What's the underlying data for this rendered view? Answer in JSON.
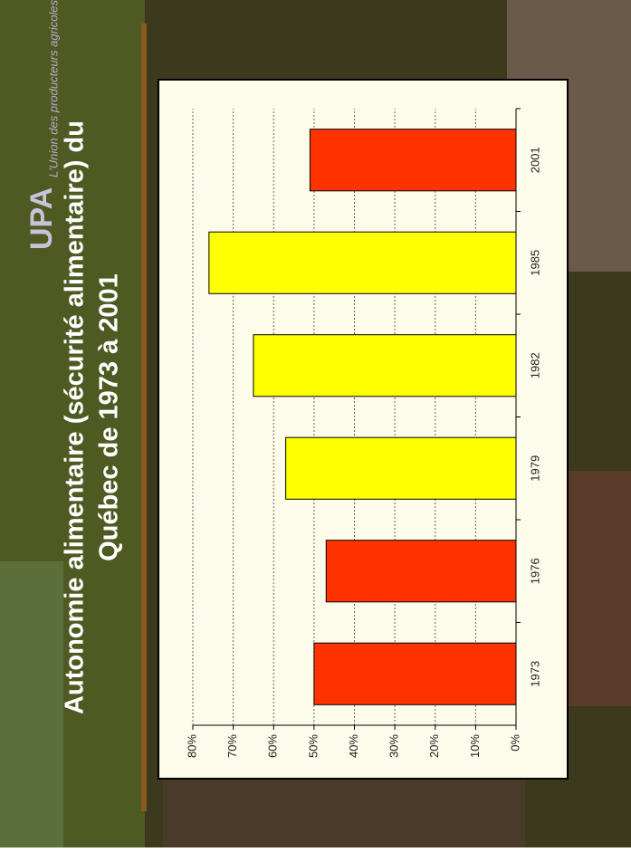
{
  "logo": {
    "name": "UPA",
    "tagline": "L'Union des producteurs agricoles"
  },
  "chart_data": {
    "type": "bar",
    "title": [
      "Autonomie alimentaire (sécurité alimentaire) du",
      "Québec de 1973 à 2001"
    ],
    "categories": [
      "1973",
      "1976",
      "1979",
      "1982",
      "1985",
      "2001"
    ],
    "values": [
      50,
      47,
      57,
      65,
      76,
      51
    ],
    "colors": [
      "#ff3300",
      "#ff3300",
      "#ffff00",
      "#ffff00",
      "#ffff00",
      "#ff3300"
    ],
    "ylim": [
      0,
      80
    ],
    "yticks": [
      {
        "value": 0,
        "label": "0%"
      },
      {
        "value": 10,
        "label": "10%"
      },
      {
        "value": 20,
        "label": "20%"
      },
      {
        "value": 30,
        "label": "30%"
      },
      {
        "value": 40,
        "label": "40%"
      },
      {
        "value": 50,
        "label": "50%"
      },
      {
        "value": 60,
        "label": "60%"
      },
      {
        "value": 70,
        "label": "70%"
      },
      {
        "value": 80,
        "label": "80%"
      }
    ],
    "grid": true
  }
}
